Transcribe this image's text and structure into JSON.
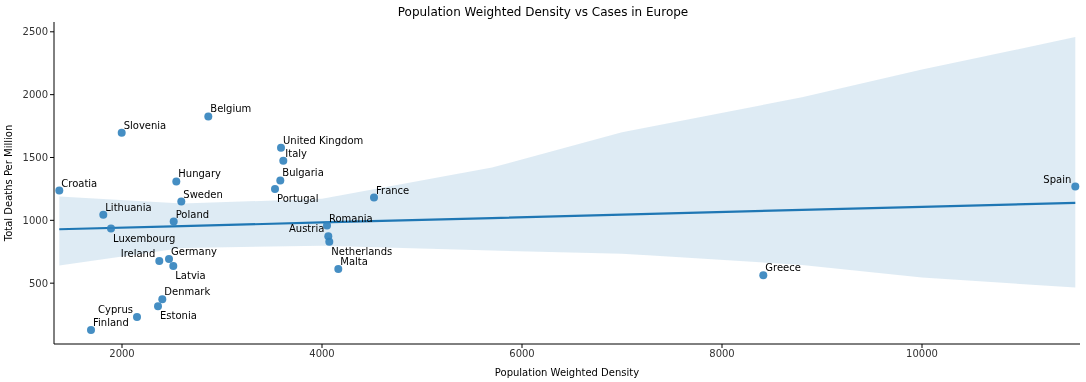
{
  "chart_data": {
    "type": "scatter",
    "title": "Population Weighted Density vs Cases in Europe",
    "xlabel": "Population Weighted Density",
    "ylabel": "Total Deaths Per Million",
    "xlim": [
      1320,
      11580
    ],
    "xticks": [
      2000,
      4000,
      6000,
      8000,
      10000
    ],
    "ylim": [
      16,
      2578
    ],
    "yticks": [
      500,
      1000,
      1500,
      2000,
      2500
    ],
    "grid": false,
    "series": [
      {
        "color": "#3182bd",
        "marker": "circle",
        "x": [
          2863,
          1997,
          3590,
          3613,
          3583,
          3530,
          2543,
          1373,
          2593,
          4520,
          1813,
          2517,
          1890,
          4050,
          4063,
          4073,
          2470,
          2373,
          2513,
          4163,
          2403,
          2360,
          2150,
          1690,
          8413,
          11533
        ],
        "values": [
          1827,
          1697,
          1577,
          1474,
          1317,
          1250,
          1309,
          1237,
          1149,
          1181,
          1045,
          990,
          934,
          958,
          873,
          830,
          692,
          676,
          636,
          612,
          372,
          317,
          231,
          128,
          564,
          1269
        ]
      },
      {
        "type": "line",
        "color": "#1f77b4",
        "marker": "none",
        "x": [
          1373,
          2600,
          4000,
          5700,
          7000,
          8800,
          10000,
          11533
        ],
        "values": [
          929,
          954,
          983,
          1018,
          1045,
          1083,
          1107,
          1139
        ],
        "lower": [
          641,
          780,
          798,
          760,
          735,
          645,
          545,
          465
        ],
        "upper": [
          1189,
          1133,
          1171,
          1420,
          1700,
          1979,
          2200,
          2458
        ]
      }
    ],
    "annotations": [
      {
        "text": "Belgium",
        "x": 2863,
        "y": 1827
      },
      {
        "text": "Slovenia",
        "x": 1997,
        "y": 1697
      },
      {
        "text": "United Kingdom",
        "x": 3590,
        "y": 1577
      },
      {
        "text": "Italy",
        "x": 3613,
        "y": 1474
      },
      {
        "text": "Bulgaria",
        "x": 3583,
        "y": 1317
      },
      {
        "text": "Portugal",
        "x": 3530,
        "y": 1250
      },
      {
        "text": "Hungary",
        "x": 2543,
        "y": 1309
      },
      {
        "text": "Croatia",
        "x": 1373,
        "y": 1237
      },
      {
        "text": "Sweden",
        "x": 2593,
        "y": 1149
      },
      {
        "text": "France",
        "x": 4520,
        "y": 1181
      },
      {
        "text": "Lithuania",
        "x": 1813,
        "y": 1045
      },
      {
        "text": "Poland",
        "x": 2517,
        "y": 990
      },
      {
        "text": "Luxembourg",
        "x": 1890,
        "y": 934
      },
      {
        "text": "Romania",
        "x": 4050,
        "y": 958
      },
      {
        "text": "Austria",
        "x": 4063,
        "y": 873
      },
      {
        "text": "Netherlands",
        "x": 4073,
        "y": 830
      },
      {
        "text": "Germany",
        "x": 2470,
        "y": 692
      },
      {
        "text": "Ireland",
        "x": 2373,
        "y": 676
      },
      {
        "text": "Latvia",
        "x": 2513,
        "y": 636
      },
      {
        "text": "Malta",
        "x": 4163,
        "y": 612
      },
      {
        "text": "Denmark",
        "x": 2403,
        "y": 372
      },
      {
        "text": "Estonia",
        "x": 2360,
        "y": 317
      },
      {
        "text": "Cyprus",
        "x": 2150,
        "y": 231
      },
      {
        "text": "Finland",
        "x": 1690,
        "y": 128
      },
      {
        "text": "Greece",
        "x": 8413,
        "y": 564
      },
      {
        "text": "Spain",
        "x": 11533,
        "y": 1269
      }
    ]
  }
}
